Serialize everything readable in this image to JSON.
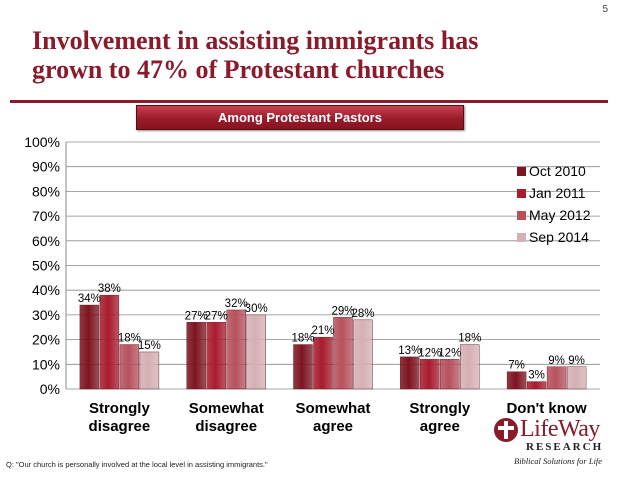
{
  "page_number": "5",
  "title_lines": [
    "Involvement in assisting immigrants has",
    "grown to 47% of Protestant churches"
  ],
  "subtitle": "Among Protestant Pastors",
  "footnote": "Q: \"Our church is personally involved at the local level in assisting immigrants.\"",
  "logo": {
    "name": "LifeWay",
    "sub": "RESEARCH",
    "tagline": "Biblical Solutions for Life"
  },
  "colors": {
    "brand": "#8b1a2b",
    "series": [
      "#7d1521",
      "#a81c2e",
      "#b5525e",
      "#d4b0b4"
    ]
  },
  "chart_data": {
    "type": "bar",
    "categories": [
      [
        "Strongly",
        "disagree"
      ],
      [
        "Somewhat",
        "disagree"
      ],
      [
        "Somewhat",
        "agree"
      ],
      [
        "Strongly",
        "agree"
      ],
      [
        "Don't know"
      ]
    ],
    "series": [
      {
        "name": "Oct 2010",
        "values": [
          34,
          27,
          18,
          13,
          7
        ]
      },
      {
        "name": "Jan 2011",
        "values": [
          38,
          27,
          21,
          12,
          3
        ]
      },
      {
        "name": "May 2012",
        "values": [
          18,
          32,
          29,
          12,
          9
        ]
      },
      {
        "name": "Sep 2014",
        "values": [
          15,
          30,
          28,
          18,
          9
        ]
      }
    ],
    "ylim": [
      0,
      100
    ],
    "yticks": [
      "0%",
      "10%",
      "20%",
      "30%",
      "40%",
      "50%",
      "60%",
      "70%",
      "80%",
      "90%",
      "100%"
    ],
    "value_suffix": "%",
    "legend_position": "right",
    "grid": true
  }
}
